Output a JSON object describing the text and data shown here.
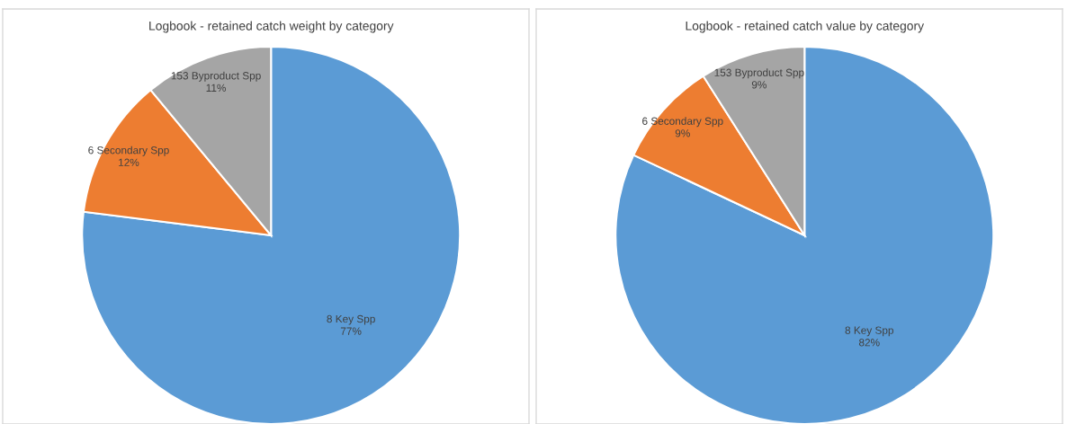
{
  "chart_data": [
    {
      "type": "pie",
      "title": "Logbook - retained catch weight by category",
      "categories": [
        "8 Key Spp",
        "6 Secondary Spp",
        "153 Byproduct Spp"
      ],
      "values": [
        77,
        12,
        11
      ],
      "value_labels": [
        "77%",
        "12%",
        "11%"
      ],
      "colors": [
        "#5b9bd5",
        "#ed7d31",
        "#a5a5a5"
      ]
    },
    {
      "type": "pie",
      "title": "Logbook - retained catch value by category",
      "categories": [
        "8 Key Spp",
        "6 Secondary Spp",
        "153 Byproduct Spp"
      ],
      "values": [
        82,
        9,
        9
      ],
      "value_labels": [
        "82%",
        "9%",
        "9%"
      ],
      "colors": [
        "#5b9bd5",
        "#ed7d31",
        "#a5a5a5"
      ]
    }
  ]
}
